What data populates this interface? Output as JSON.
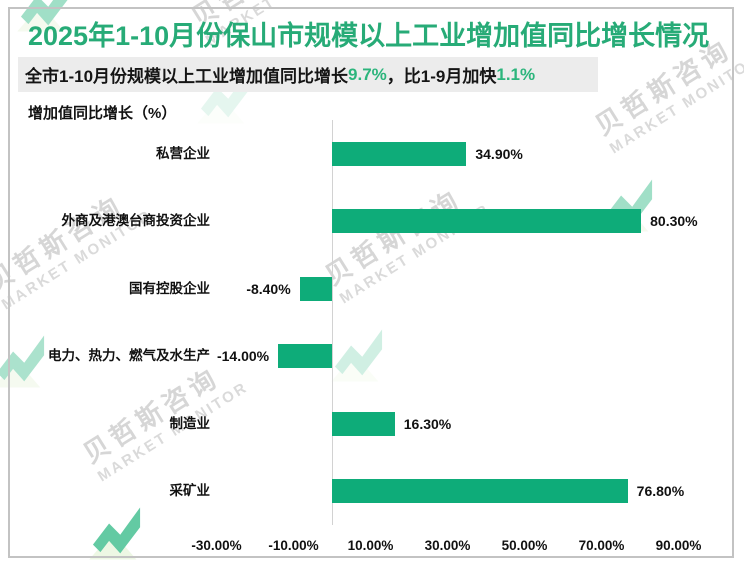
{
  "header": {
    "title": "2025年1-10月份保山市规模以上工业增加值同比增长情况",
    "subtitle_parts": [
      {
        "text": "全市1-10月份规模以上工业增加值同比增长",
        "highlight": false
      },
      {
        "text": "9.7%",
        "highlight": true
      },
      {
        "text": "，比1-9月加快",
        "highlight": false
      },
      {
        "text": "1.1%",
        "highlight": true
      }
    ],
    "axis_title": "增加值同比增长（%）"
  },
  "chart_data": {
    "type": "bar",
    "orientation": "horizontal",
    "title": "2025年1-10月份保山市规模以上工业增加值同比增长情况",
    "xlabel": "增加值同比增长（%）",
    "categories": [
      "私营企业",
      "外商及港澳台商投资企业",
      "国有控股企业",
      "电力、热力、燃气及水生产",
      "制造业",
      "采矿业"
    ],
    "values": [
      34.9,
      80.3,
      -8.4,
      -14.0,
      16.3,
      76.8
    ],
    "value_labels": [
      "34.90%",
      "80.30%",
      "-8.40%",
      "-14.00%",
      "16.30%",
      "76.80%"
    ],
    "x_ticks": [
      -30,
      -10,
      10,
      30,
      50,
      70,
      90
    ],
    "x_tick_labels": [
      "-30.00%",
      "-10.00%",
      "10.00%",
      "30.00%",
      "50.00%",
      "70.00%",
      "90.00%"
    ],
    "xlim": [
      -40,
      100
    ],
    "grid": false,
    "legend": null,
    "bar_color": "#0eac79"
  },
  "watermark": {
    "text_cn": "贝哲斯咨询",
    "text_en": "MARKET MONITOR",
    "logo_color": "#2fb985",
    "text_color": "#d2d2d2"
  },
  "colors": {
    "title_green": "#27ab77",
    "highlight_green": "#2cb57c",
    "subtitle_bg": "#ececec",
    "bar_green": "#0eac79",
    "axis_line": "#d2d2d2",
    "border_gray": "#c3c3c3",
    "text_black": "#111111"
  }
}
